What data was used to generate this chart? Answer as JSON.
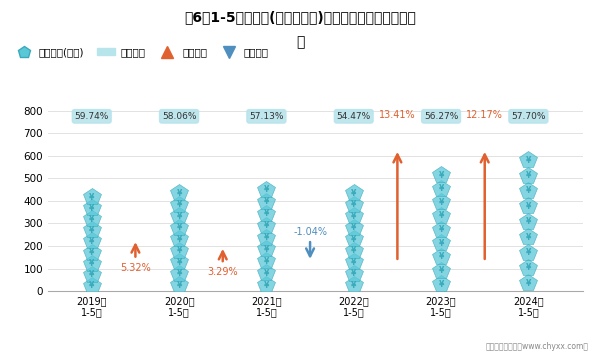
{
  "title_line1": "近6年1-5月辽宁省(不含大连市)累计原保险保费收入统计",
  "title_line2": "图",
  "years": [
    "2019年\n1-5月",
    "2020年\n1-5月",
    "2021年\n1-5月",
    "2022年\n1-5月",
    "2023年\n1-5月",
    "2024年\n1-5月"
  ],
  "values": [
    440,
    460,
    475,
    460,
    545,
    615
  ],
  "shou_xian_pct": [
    "59.74%",
    "58.06%",
    "57.13%",
    "54.47%",
    "56.27%",
    "57.70%"
  ],
  "yoy_values": [
    5.32,
    3.29,
    -1.04,
    13.41,
    12.17,
    null
  ],
  "yoy_labels": [
    "5.32%",
    "3.29%",
    "-1.04%",
    "13.41%",
    "12.17%",
    null
  ],
  "arrow_increase_color": "#E06030",
  "arrow_decrease_color": "#4F8FBF",
  "shou_box_color": "#B8E4EC",
  "icon_color": "#5BC8D8",
  "icon_border_color": "#3AAABB",
  "ylim": [
    0,
    850
  ],
  "yticks": [
    0,
    100,
    200,
    300,
    400,
    500,
    600,
    700,
    800
  ],
  "background_color": "#FFFFFF",
  "footer": "制图：智研咨询（www.chyxx.com）",
  "legend_items": [
    "累计保费(亿元)",
    "寿险占比",
    "同比增加",
    "同比减少"
  ]
}
